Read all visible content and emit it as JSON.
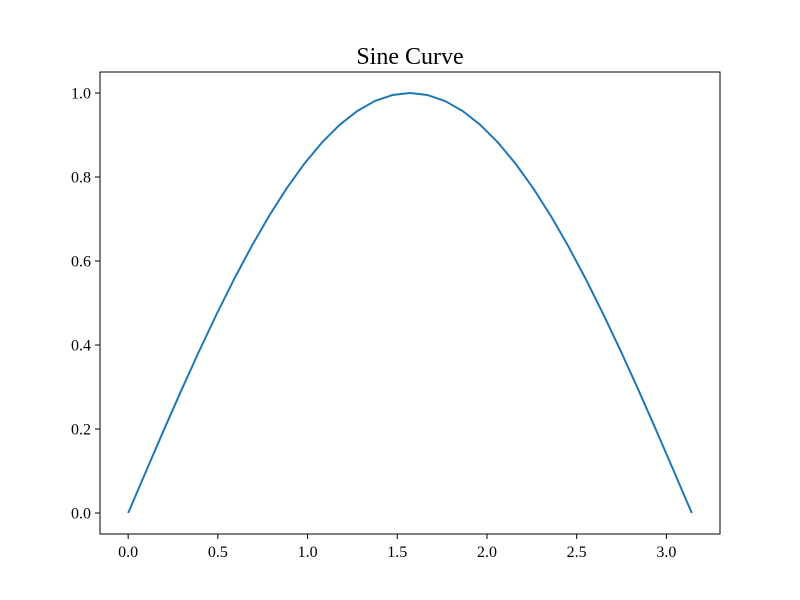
{
  "chart_data": {
    "type": "line",
    "title": "Sine Curve",
    "xlabel": "",
    "ylabel": "",
    "xlim": [
      -0.157,
      3.299
    ],
    "ylim": [
      -0.05,
      1.05
    ],
    "xticks": [
      0.0,
      0.5,
      1.0,
      1.5,
      2.0,
      2.5,
      3.0
    ],
    "xtick_labels": [
      "0.0",
      "0.5",
      "1.0",
      "1.5",
      "2.0",
      "2.5",
      "3.0"
    ],
    "yticks": [
      0.0,
      0.2,
      0.4,
      0.6,
      0.8,
      1.0
    ],
    "ytick_labels": [
      "0.0",
      "0.2",
      "0.4",
      "0.6",
      "0.8",
      "1.0"
    ],
    "grid": false,
    "series": [
      {
        "color": "#1f77b4",
        "x": [
          0,
          0.0982,
          0.1963,
          0.2945,
          0.3927,
          0.4909,
          0.589,
          0.6872,
          0.7854,
          0.8836,
          0.9817,
          1.0799,
          1.1781,
          1.2763,
          1.3744,
          1.4726,
          1.5708,
          1.669,
          1.7671,
          1.8653,
          1.9635,
          2.0617,
          2.1598,
          2.258,
          2.3562,
          2.4544,
          2.5525,
          2.6507,
          2.7489,
          2.8471,
          2.9452,
          3.0434,
          3.1416
        ],
        "y": [
          0,
          0.098,
          0.1951,
          0.2903,
          0.3827,
          0.4714,
          0.5556,
          0.6344,
          0.7071,
          0.773,
          0.8315,
          0.8819,
          0.9239,
          0.9569,
          0.9808,
          0.9952,
          1.0,
          0.9952,
          0.9808,
          0.9569,
          0.9239,
          0.8819,
          0.8315,
          0.773,
          0.7071,
          0.6344,
          0.5556,
          0.4714,
          0.3827,
          0.2903,
          0.1951,
          0.098,
          0
        ]
      }
    ]
  }
}
